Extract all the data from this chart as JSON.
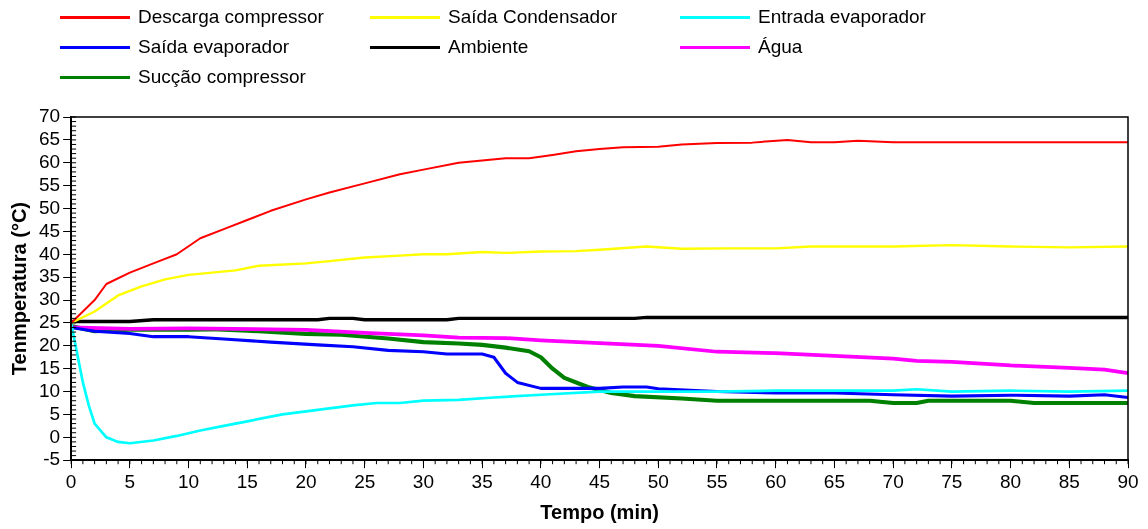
{
  "chart_data": {
    "type": "line",
    "xlabel": "Tempo (min)",
    "ylabel": "Tenmperatura (°C)",
    "xlim": [
      0,
      90
    ],
    "xticks": [
      0,
      5,
      10,
      15,
      20,
      25,
      30,
      35,
      40,
      45,
      50,
      55,
      60,
      65,
      70,
      75,
      80,
      85,
      90
    ],
    "ylim": [
      -5,
      70
    ],
    "yticks": [
      -5,
      0,
      5,
      10,
      15,
      20,
      25,
      30,
      35,
      40,
      45,
      50,
      55,
      60,
      65,
      70
    ],
    "grid": false,
    "legend": "top",
    "marker": "none",
    "line_style": "solid",
    "series": [
      {
        "name": "Descarga compressor",
        "color": "#ff0000",
        "x": [
          0,
          2,
          3,
          5,
          7,
          9,
          11,
          13,
          15,
          17,
          20,
          22,
          25,
          28,
          30,
          33,
          37,
          39,
          41,
          43,
          45,
          47,
          50,
          52,
          55,
          58,
          61,
          63,
          65,
          67,
          70,
          75,
          80,
          85,
          90
        ],
        "values": [
          25,
          30,
          33.5,
          36,
          38,
          40,
          43.5,
          45.5,
          47.5,
          49.5,
          52,
          53.5,
          55.5,
          57.5,
          58.5,
          60,
          61,
          61,
          61.7,
          62.5,
          63,
          63.4,
          63.5,
          64,
          64.3,
          64.4,
          65,
          64.5,
          64.5,
          64.8,
          64.5,
          64.5,
          64.5,
          64.5,
          64.5
        ]
      },
      {
        "name": "Saída Condensador",
        "color": "#ffff00",
        "x": [
          0,
          2,
          4,
          6,
          8,
          10,
          12,
          14,
          16,
          20,
          22,
          25,
          28,
          30,
          32,
          35,
          37,
          40,
          43,
          45,
          49,
          52,
          56,
          60,
          63,
          70,
          75,
          80,
          85,
          90
        ],
        "values": [
          25,
          27.5,
          31,
          33,
          34.5,
          35.5,
          36,
          36.5,
          37.5,
          38,
          38.5,
          39.3,
          39.7,
          40,
          40,
          40.5,
          40.3,
          40.6,
          40.7,
          41,
          41.7,
          41.2,
          41.3,
          41.3,
          41.7,
          41.7,
          42,
          41.7,
          41.5,
          41.7
        ]
      },
      {
        "name": "Entrada evaporador",
        "color": "#00ffff",
        "x": [
          0,
          1,
          1.5,
          2,
          3,
          4,
          5,
          7,
          9,
          11,
          13,
          15,
          18,
          21,
          24,
          26,
          28,
          30,
          33,
          36,
          40,
          45,
          50,
          55,
          60,
          65,
          70,
          72,
          75,
          80,
          85,
          90
        ],
        "values": [
          25,
          12,
          7,
          3,
          0,
          -1,
          -1.3,
          -0.7,
          0.3,
          1.5,
          2.5,
          3.5,
          5,
          6,
          7,
          7.5,
          7.5,
          8,
          8.2,
          8.7,
          9.3,
          10,
          10,
          10,
          10.2,
          10.2,
          10.2,
          10.5,
          10,
          10.2,
          10,
          10.2
        ]
      },
      {
        "name": "Saída evaporador",
        "color": "#0000ff",
        "x": [
          0,
          2,
          5,
          7,
          10,
          13,
          17,
          21,
          24,
          27,
          30,
          32,
          35,
          36,
          37,
          38,
          40,
          45,
          47,
          49,
          50,
          55,
          60,
          65,
          70,
          75,
          80,
          85,
          88,
          90
        ],
        "values": [
          24,
          23.2,
          22.7,
          22,
          22,
          21.5,
          20.8,
          20.2,
          19.8,
          19,
          18.7,
          18.2,
          18.2,
          17.5,
          14,
          12,
          10.7,
          10.7,
          11,
          11,
          10.6,
          10,
          9.7,
          9.7,
          9.3,
          9,
          9.2,
          9,
          9.3,
          8.7
        ]
      },
      {
        "name": "Ambiente",
        "color": "#000000",
        "x": [
          0,
          5,
          7,
          21,
          22,
          24,
          25,
          32,
          33,
          48,
          49,
          90
        ],
        "values": [
          25.3,
          25.3,
          25.7,
          25.7,
          26,
          26,
          25.7,
          25.7,
          26,
          26,
          26.2,
          26.2
        ]
      },
      {
        "name": "Água",
        "color": "#ff00ff",
        "x": [
          0,
          5,
          10,
          20,
          25,
          30,
          33,
          37,
          40,
          45,
          50,
          55,
          60,
          65,
          70,
          72,
          75,
          80,
          85,
          88,
          90
        ],
        "values": [
          24,
          23.7,
          23.8,
          23.5,
          22.8,
          22.3,
          21.8,
          21.7,
          21.2,
          20.6,
          20,
          18.7,
          18.4,
          17.8,
          17.2,
          16.7,
          16.5,
          15.7,
          15.2,
          14.8,
          14
        ]
      },
      {
        "name": "Sucção compressor",
        "color": "#008000",
        "x": [
          0,
          2,
          5,
          10,
          12,
          15,
          20,
          23,
          27,
          30,
          33,
          35,
          37,
          39,
          40,
          41,
          42,
          44,
          46,
          48,
          52,
          55,
          60,
          65,
          68,
          70,
          72,
          73,
          80,
          82,
          90
        ],
        "values": [
          24.3,
          23.2,
          23.5,
          23.5,
          23.6,
          23.3,
          22.6,
          22.4,
          21.6,
          20.8,
          20.5,
          20.2,
          19.6,
          18.8,
          17.5,
          15,
          13,
          11,
          9.7,
          9,
          8.5,
          8,
          8,
          8,
          8,
          7.5,
          7.5,
          8,
          8,
          7.5,
          7.5
        ]
      }
    ]
  }
}
